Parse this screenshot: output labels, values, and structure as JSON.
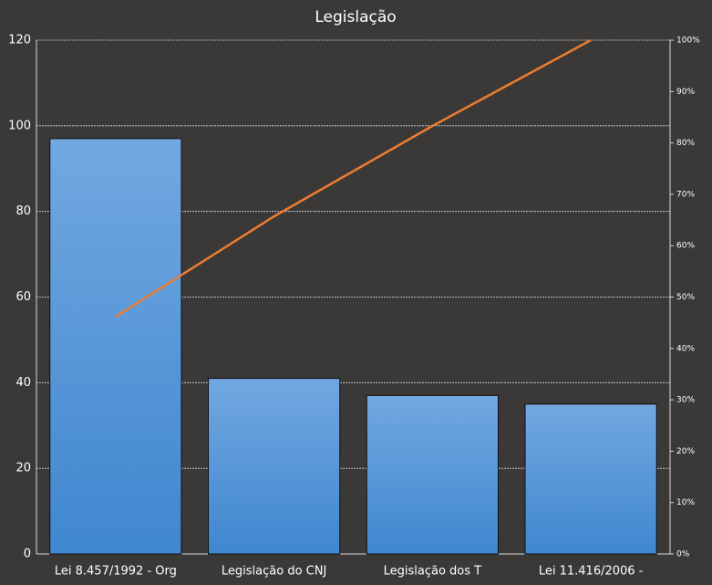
{
  "chart_data": {
    "type": "bar",
    "title": "Legislação",
    "categories": [
      "Lei 8.457/1992 - Org",
      "Legislação do CNJ",
      "Legislação dos T",
      "Lei 11.416/2006 -"
    ],
    "series": [
      {
        "type": "bar",
        "color": "#4a8fd6",
        "values": [
          97,
          41,
          37,
          35
        ]
      },
      {
        "type": "line",
        "color": "#ed7d31",
        "axis": "y2",
        "values": [
          46.2,
          65.7,
          83.3,
          100
        ]
      }
    ],
    "ylim": [
      0,
      120
    ],
    "yticks": [
      0,
      20,
      40,
      60,
      80,
      100,
      120
    ],
    "y2lim": [
      0,
      100
    ],
    "y2ticks": [
      {
        "value": 0,
        "label": "0%"
      },
      {
        "value": 10,
        "label": "10%"
      },
      {
        "value": 20,
        "label": "20%"
      },
      {
        "value": 30,
        "label": "30%"
      },
      {
        "value": 40,
        "label": "40%"
      },
      {
        "value": 50,
        "label": "50%"
      },
      {
        "value": 60,
        "label": "60%"
      },
      {
        "value": 70,
        "label": "70%"
      },
      {
        "value": 80,
        "label": "80%"
      },
      {
        "value": 90,
        "label": "90%"
      },
      {
        "value": 100,
        "label": "100%"
      }
    ],
    "grid": true
  }
}
